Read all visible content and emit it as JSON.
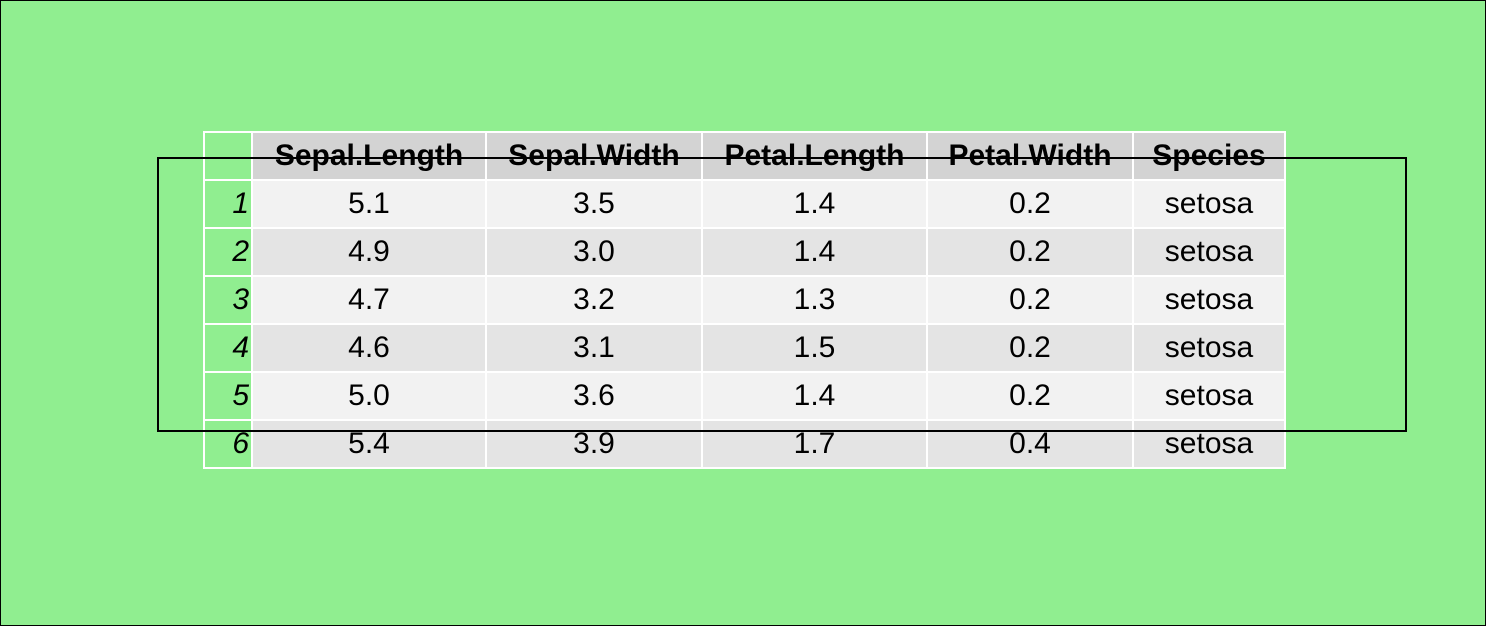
{
  "table": {
    "columns": [
      "Sepal.Length",
      "Sepal.Width",
      "Petal.Length",
      "Petal.Width",
      "Species"
    ],
    "rows": [
      {
        "name": "1",
        "cells": [
          "5.1",
          "3.5",
          "1.4",
          "0.2",
          "setosa"
        ]
      },
      {
        "name": "2",
        "cells": [
          "4.9",
          "3.0",
          "1.4",
          "0.2",
          "setosa"
        ]
      },
      {
        "name": "3",
        "cells": [
          "4.7",
          "3.2",
          "1.3",
          "0.2",
          "setosa"
        ]
      },
      {
        "name": "4",
        "cells": [
          "4.6",
          "3.1",
          "1.5",
          "0.2",
          "setosa"
        ]
      },
      {
        "name": "5",
        "cells": [
          "5.0",
          "3.6",
          "1.4",
          "0.2",
          "setosa"
        ]
      },
      {
        "name": "6",
        "cells": [
          "5.4",
          "3.9",
          "1.7",
          "0.4",
          "setosa"
        ]
      }
    ]
  },
  "colors": {
    "background": "#90ee90",
    "header_fill": "#d3d3d3",
    "row_odd_fill": "#f2f2f2",
    "row_even_fill": "#e4e4e4",
    "cell_border": "#ffffff",
    "outline_box": "#000000"
  }
}
